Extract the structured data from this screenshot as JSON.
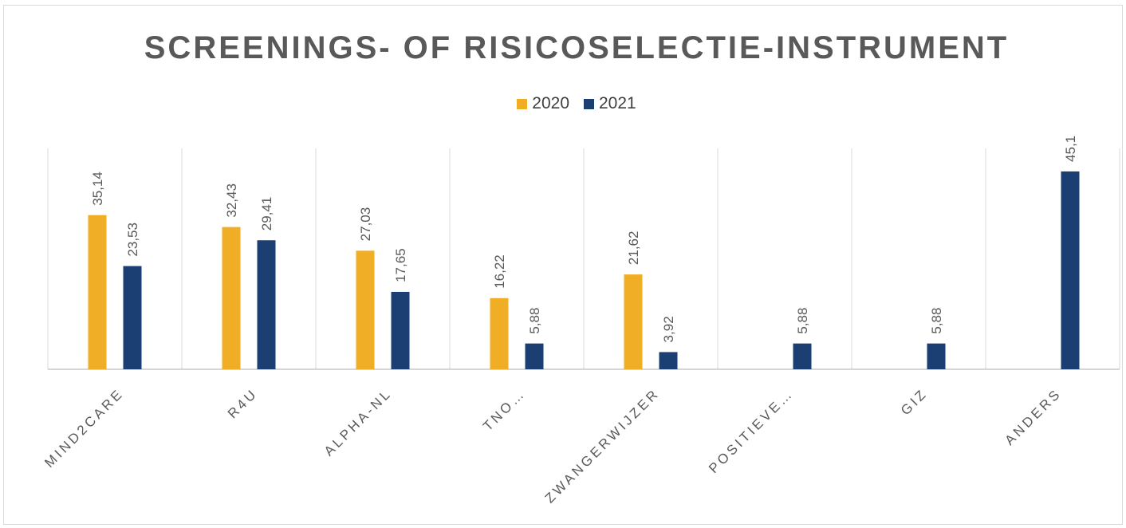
{
  "chart_data": {
    "type": "bar",
    "title": "SCREENINGS- OF RISICOSELECTIE-INSTRUMENT",
    "categories": [
      "MIND2CARE",
      "R4U",
      "ALPHA-NL",
      "TNO…",
      "ZWANGERWIJZER",
      "POSITIEVE…",
      "GIZ",
      "ANDERS"
    ],
    "series": [
      {
        "name": "2020",
        "color": "#F0AE26",
        "values": [
          35.14,
          32.43,
          27.03,
          16.22,
          21.62,
          null,
          null,
          null
        ],
        "labels": [
          "35,14",
          "32,43",
          "27,03",
          "16,22",
          "21,62",
          "",
          "",
          ""
        ]
      },
      {
        "name": "2021",
        "color": "#1C3F73",
        "values": [
          23.53,
          29.41,
          17.65,
          5.88,
          3.92,
          5.88,
          5.88,
          45.1
        ],
        "labels": [
          "23,53",
          "29,41",
          "17,65",
          "5,88",
          "3,92",
          "5,88",
          "5,88",
          "45,1"
        ]
      }
    ],
    "ylim": [
      0,
      50
    ],
    "legend_position": "top",
    "grid": "vertical category separators"
  }
}
